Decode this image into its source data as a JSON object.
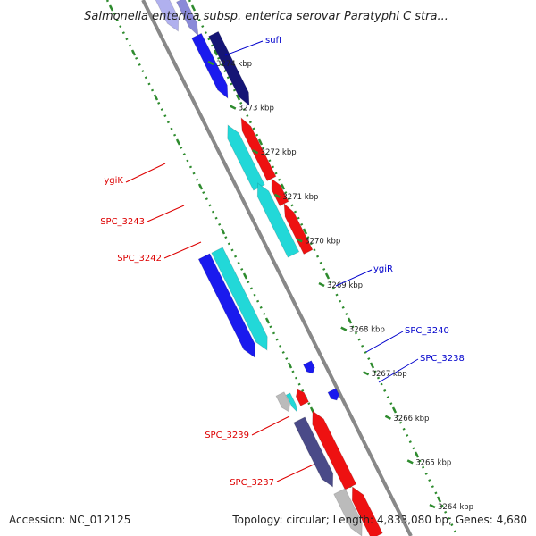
{
  "title": "Salmonella enterica subsp. enterica serovar Paratyphi C stra...",
  "footer": {
    "accession": "Accession: NC_012125",
    "summary": "Topology: circular; Length: 4,833,080 bp; Genes: 4,680"
  },
  "colors": {
    "backbone": "#888888",
    "dotted_track": "#2e8b2e",
    "blue": "#1a1aee",
    "navy": "#151575",
    "cyan": "#22d8d8",
    "red": "#ee1111",
    "slate": "#4a4a88",
    "light_gray": "#bbbbbb",
    "left_label": "#dd0000",
    "right_label": "#0000cc"
  },
  "ticks": [
    "3274 kbp",
    "3273 kbp",
    "3272 kbp",
    "3271 kbp",
    "3270 kbp",
    "3269 kbp",
    "3268 kbp",
    "3267 kbp",
    "3266 kbp",
    "3265 kbp",
    "3264 kbp"
  ],
  "gene_labels_left": [
    "ygiK",
    "SPC_3243",
    "SPC_3242",
    "SPC_3239",
    "SPC_3237"
  ],
  "gene_labels_right": [
    "sufI",
    "ygiR",
    "SPC_3240",
    "SPC_3238"
  ]
}
